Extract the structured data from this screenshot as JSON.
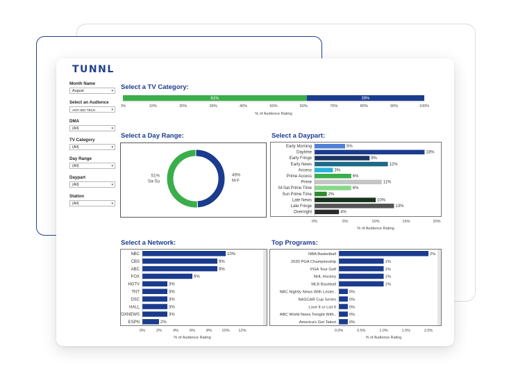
{
  "brand": {
    "logo_text": "TUNNL"
  },
  "filters": [
    {
      "label": "Month Name",
      "value": "August"
    },
    {
      "label": "Select an Audience",
      "value": "ANTI BIG TECH"
    },
    {
      "label": "DMA",
      "value": "(All)"
    },
    {
      "label": "TV Category",
      "value": "(All)"
    },
    {
      "label": "Day Range",
      "value": "(All)"
    },
    {
      "label": "Daypart",
      "value": "(All)"
    },
    {
      "label": "Station",
      "value": "(All)"
    }
  ],
  "titles": {
    "tv_category": "Select a TV Category:",
    "day_range": "Select a Day Range:",
    "daypart": "Select a Daypart:",
    "network": "Select a Network:",
    "programs": "Top Programs:"
  },
  "chart_data": [
    {
      "id": "tv_category",
      "type": "bar",
      "orientation": "horizontal-stacked",
      "series": [
        {
          "label": "61%",
          "value": 61,
          "color": "#3aae4a"
        },
        {
          "label": "39%",
          "value": 39,
          "color": "#1a3b8e"
        }
      ],
      "xticks": [
        "0%",
        "10%",
        "20%",
        "30%",
        "40%",
        "50%",
        "60%",
        "70%",
        "80%",
        "90%",
        "100%"
      ],
      "xlim": [
        0,
        100
      ],
      "xlabel": "% of Audience Rating"
    },
    {
      "id": "day_range",
      "type": "pie",
      "slices": [
        {
          "label": "49%",
          "name": "M-F",
          "value": 49,
          "color": "#1a3b8e"
        },
        {
          "label": "51%",
          "name": "Sa-Su",
          "value": 51,
          "color": "#3aae4a"
        }
      ]
    },
    {
      "id": "daypart",
      "type": "bar",
      "orientation": "horizontal",
      "categories": [
        "Early Morning",
        "Daytime",
        "Early Fringe",
        "Early News",
        "Access",
        "Prime Access",
        "Prime",
        "M-Sat Prime Time",
        "Sun Prime Time",
        "Late News",
        "Late Fringe",
        "Overnight"
      ],
      "values": [
        5,
        18,
        9,
        12,
        3,
        6,
        11,
        6,
        2,
        10,
        13,
        4
      ],
      "labels": [
        "5%",
        "18%",
        "9%",
        "12%",
        "3%",
        "6%",
        "11%",
        "6%",
        "2%",
        "10%",
        "13%",
        "4%"
      ],
      "colors": [
        "#4f7fd6",
        "#1a3b8e",
        "#1c3563",
        "#1d6a86",
        "#29b0df",
        "#3aae4a",
        "#c5c5c5",
        "#86d98a",
        "#2e8b2e",
        "#17321a",
        "#545454",
        "#2b2b2b"
      ],
      "xticks": [
        "0%",
        "5%",
        "10%",
        "15%",
        "20%"
      ],
      "xlim": [
        0,
        20
      ],
      "xlabel": "% of Audience Rating"
    },
    {
      "id": "network",
      "type": "bar",
      "orientation": "horizontal",
      "categories": [
        "NBC",
        "CBS",
        "ABC",
        "FOX",
        "HGTV",
        "TNT",
        "DSC",
        "HALL",
        "FOXNEWS",
        "ESPN"
      ],
      "values": [
        10,
        9,
        9,
        6,
        3,
        3,
        3,
        3,
        3,
        2
      ],
      "labels": [
        "10%",
        "9%",
        "9%",
        "6%",
        "3%",
        "3%",
        "3%",
        "3%",
        "3%",
        "2%"
      ],
      "color": "#1a3b8e",
      "xticks": [
        "0%",
        "2%",
        "4%",
        "6%",
        "8%",
        "10%",
        "12%"
      ],
      "xlim": [
        0,
        12
      ],
      "xlabel": "% of Audience Rating"
    },
    {
      "id": "programs",
      "type": "bar",
      "orientation": "horizontal",
      "categories": [
        "NBA Basketball",
        "2020 PGA Championship",
        "PGA Tour Golf",
        "NHL Hockey",
        "MLB Baseball",
        "NBC Nightly News With Lester..",
        "NASCAR Cup Series",
        "Love It or List It",
        "ABC World News Tonight With..",
        "America's Got Talent"
      ],
      "values": [
        2.0,
        1.0,
        1.0,
        1.0,
        1.0,
        0.2,
        0.2,
        0.2,
        0.2,
        0.2
      ],
      "labels": [
        "2%",
        "1%",
        "1%",
        "1%",
        "1%",
        "0%",
        "0%",
        "0%",
        "0%",
        "0%"
      ],
      "color": "#1a3b8e",
      "xticks": [
        "0.0%",
        "0.5%",
        "1.0%",
        "1.5%",
        "2.0%"
      ],
      "xlim": [
        0,
        2
      ],
      "xlabel": "% of Audience Rating"
    }
  ]
}
